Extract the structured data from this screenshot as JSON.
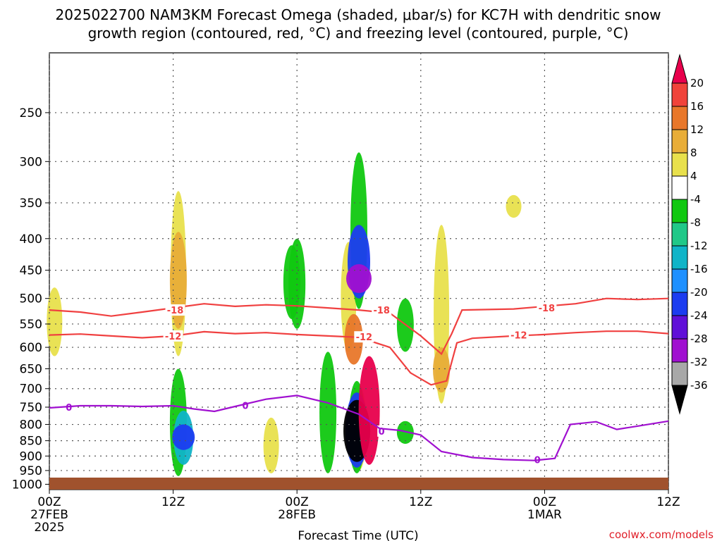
{
  "chart_data": {
    "type": "heatmap",
    "title_lines": [
      "2025022700 NAM3KM Forecast Omega (shaded, μbar/s) for KC7H with dendritic snow",
      "growth region (contoured, red, °C) and freezing level (contoured, purple, °C)"
    ],
    "xlabel": "Forecast Time (UTC)",
    "credit": "coolwx.com/models",
    "x_ticks": [
      {
        "hour": 0,
        "lines": [
          "00Z",
          "27FEB",
          "2025"
        ]
      },
      {
        "hour": 12,
        "lines": [
          "12Z"
        ]
      },
      {
        "hour": 24,
        "lines": [
          "00Z",
          "28FEB"
        ]
      },
      {
        "hour": 36,
        "lines": [
          "12Z"
        ]
      },
      {
        "hour": 48,
        "lines": [
          "00Z",
          "1MAR"
        ]
      },
      {
        "hour": 60,
        "lines": [
          "12Z"
        ]
      }
    ],
    "y_ticks": [
      250,
      300,
      350,
      400,
      450,
      500,
      550,
      600,
      650,
      700,
      750,
      800,
      850,
      900,
      950,
      1000
    ],
    "y_scale": "pressure (log)",
    "y_range_hpa": [
      200,
      1020
    ],
    "x_range_hours": [
      0,
      60
    ],
    "colorbar": {
      "labels": [
        "20",
        "16",
        "12",
        "8",
        "4",
        "-4",
        "-8",
        "-12",
        "-16",
        "-20",
        "-24",
        "-28",
        "-32",
        "-36"
      ],
      "colors": [
        "#e8004c",
        "#f0433a",
        "#e8772a",
        "#e8ad38",
        "#e8e04c",
        "#ffffff",
        "#10c810",
        "#20c888",
        "#10b4c8",
        "#1e90ff",
        "#1c3cf0",
        "#6010d8",
        "#a010d0",
        "#a8a8a8",
        "#000000"
      ]
    },
    "omega_cells": [
      {
        "h": 12.5,
        "p1": 335,
        "p2": 620,
        "v": 4
      },
      {
        "h": 12.5,
        "p1": 390,
        "p2": 560,
        "v": 8
      },
      {
        "h": 12.5,
        "p1": 650,
        "p2": 970,
        "v": -8
      },
      {
        "h": 13.0,
        "p1": 760,
        "p2": 930,
        "v": -16
      },
      {
        "h": 13.0,
        "p1": 800,
        "p2": 880,
        "v": -24
      },
      {
        "h": 23.5,
        "p1": 410,
        "p2": 540,
        "v": -8
      },
      {
        "h": 24.0,
        "p1": 400,
        "p2": 560,
        "v": -8
      },
      {
        "h": 29.0,
        "p1": 405,
        "p2": 610,
        "v": 4
      },
      {
        "h": 29.5,
        "p1": 530,
        "p2": 640,
        "v": 12
      },
      {
        "h": 30.0,
        "p1": 690,
        "p2": 950,
        "v": 4
      },
      {
        "h": 30.0,
        "p1": 290,
        "p2": 520,
        "v": -8
      },
      {
        "h": 30.0,
        "p1": 380,
        "p2": 500,
        "v": -24
      },
      {
        "h": 30.0,
        "p1": 440,
        "p2": 490,
        "v": -32
      },
      {
        "h": 29.8,
        "p1": 680,
        "p2": 960,
        "v": -8
      },
      {
        "h": 29.8,
        "p1": 710,
        "p2": 940,
        "v": -24
      },
      {
        "h": 29.8,
        "p1": 730,
        "p2": 920,
        "v": -36
      },
      {
        "h": 31.0,
        "p1": 620,
        "p2": 930,
        "v": 20
      },
      {
        "h": 34.5,
        "p1": 500,
        "p2": 610,
        "v": -8
      },
      {
        "h": 38.0,
        "p1": 380,
        "p2": 740,
        "v": 4
      },
      {
        "h": 38.0,
        "p1": 600,
        "p2": 710,
        "v": 8
      },
      {
        "h": 45.0,
        "p1": 340,
        "p2": 370,
        "v": 4
      },
      {
        "h": 0.5,
        "p1": 480,
        "p2": 620,
        "v": 4
      },
      {
        "h": 21.5,
        "p1": 780,
        "p2": 960,
        "v": 4
      },
      {
        "h": 27.0,
        "p1": 610,
        "p2": 960,
        "v": -8
      },
      {
        "h": 34.5,
        "p1": 790,
        "p2": 860,
        "v": -8
      }
    ],
    "contour_dgz_minus18_hpa": [
      {
        "hour": 0,
        "p": 522
      },
      {
        "hour": 3,
        "p": 526
      },
      {
        "hour": 6,
        "p": 534
      },
      {
        "hour": 9,
        "p": 526
      },
      {
        "hour": 12,
        "p": 518
      },
      {
        "hour": 15,
        "p": 510
      },
      {
        "hour": 18,
        "p": 515
      },
      {
        "hour": 21,
        "p": 512
      },
      {
        "hour": 24,
        "p": 514
      },
      {
        "hour": 27,
        "p": 518
      },
      {
        "hour": 30,
        "p": 522
      },
      {
        "hour": 33,
        "p": 528
      },
      {
        "hour": 36,
        "p": 575
      },
      {
        "hour": 38,
        "p": 615
      },
      {
        "hour": 39,
        "p": 570
      },
      {
        "hour": 40,
        "p": 522
      },
      {
        "hour": 45,
        "p": 520
      },
      {
        "hour": 48,
        "p": 515
      },
      {
        "hour": 51,
        "p": 510
      },
      {
        "hour": 54,
        "p": 500
      },
      {
        "hour": 57,
        "p": 502
      },
      {
        "hour": 60,
        "p": 500
      }
    ],
    "contour_dgz_minus12_hpa": [
      {
        "hour": 0,
        "p": 573
      },
      {
        "hour": 3,
        "p": 571
      },
      {
        "hour": 6,
        "p": 575
      },
      {
        "hour": 9,
        "p": 579
      },
      {
        "hour": 12,
        "p": 575
      },
      {
        "hour": 15,
        "p": 566
      },
      {
        "hour": 18,
        "p": 570
      },
      {
        "hour": 21,
        "p": 568
      },
      {
        "hour": 24,
        "p": 572
      },
      {
        "hour": 27,
        "p": 575
      },
      {
        "hour": 30,
        "p": 578
      },
      {
        "hour": 33,
        "p": 600
      },
      {
        "hour": 35,
        "p": 660
      },
      {
        "hour": 37,
        "p": 690
      },
      {
        "hour": 38.5,
        "p": 680
      },
      {
        "hour": 39.5,
        "p": 590
      },
      {
        "hour": 41,
        "p": 580
      },
      {
        "hour": 45,
        "p": 575
      },
      {
        "hour": 48,
        "p": 572
      },
      {
        "hour": 51,
        "p": 568
      },
      {
        "hour": 54,
        "p": 565
      },
      {
        "hour": 57,
        "p": 565
      },
      {
        "hour": 60,
        "p": 570
      }
    ],
    "contour_freezing_0_hpa": [
      {
        "hour": 0,
        "p": 752
      },
      {
        "hour": 3,
        "p": 746
      },
      {
        "hour": 6,
        "p": 746
      },
      {
        "hour": 9,
        "p": 748
      },
      {
        "hour": 12,
        "p": 746
      },
      {
        "hour": 14,
        "p": 755
      },
      {
        "hour": 16,
        "p": 762
      },
      {
        "hour": 18,
        "p": 748
      },
      {
        "hour": 21,
        "p": 728
      },
      {
        "hour": 24,
        "p": 718
      },
      {
        "hour": 27,
        "p": 738
      },
      {
        "hour": 30,
        "p": 770
      },
      {
        "hour": 32,
        "p": 812
      },
      {
        "hour": 34,
        "p": 818
      },
      {
        "hour": 36,
        "p": 832
      },
      {
        "hour": 38,
        "p": 885
      },
      {
        "hour": 41,
        "p": 905
      },
      {
        "hour": 44,
        "p": 912
      },
      {
        "hour": 47,
        "p": 915
      },
      {
        "hour": 49,
        "p": 908
      },
      {
        "hour": 50.5,
        "p": 800
      },
      {
        "hour": 53,
        "p": 792
      },
      {
        "hour": 55,
        "p": 815
      },
      {
        "hour": 57,
        "p": 805
      },
      {
        "hour": 60,
        "p": 790
      }
    ],
    "contour_labels": [
      {
        "text": "-18",
        "hour": 12.2,
        "p": 522,
        "color": "#f04040"
      },
      {
        "text": "-18",
        "hour": 32.2,
        "p": 522,
        "color": "#f04040"
      },
      {
        "text": "-18",
        "hour": 48.2,
        "p": 518,
        "color": "#f04040"
      },
      {
        "text": "-12",
        "hour": 12.0,
        "p": 575,
        "color": "#f04040"
      },
      {
        "text": "-12",
        "hour": 30.5,
        "p": 577,
        "color": "#f04040"
      },
      {
        "text": "-12",
        "hour": 45.5,
        "p": 573,
        "color": "#f04040"
      },
      {
        "text": "0",
        "hour": 1.9,
        "p": 750,
        "color": "#a010d0"
      },
      {
        "text": "0",
        "hour": 19.0,
        "p": 745,
        "color": "#a010d0"
      },
      {
        "text": "0",
        "hour": 32.2,
        "p": 820,
        "color": "#a010d0"
      },
      {
        "text": "0",
        "hour": 47.3,
        "p": 912,
        "color": "#a010d0"
      }
    ]
  }
}
